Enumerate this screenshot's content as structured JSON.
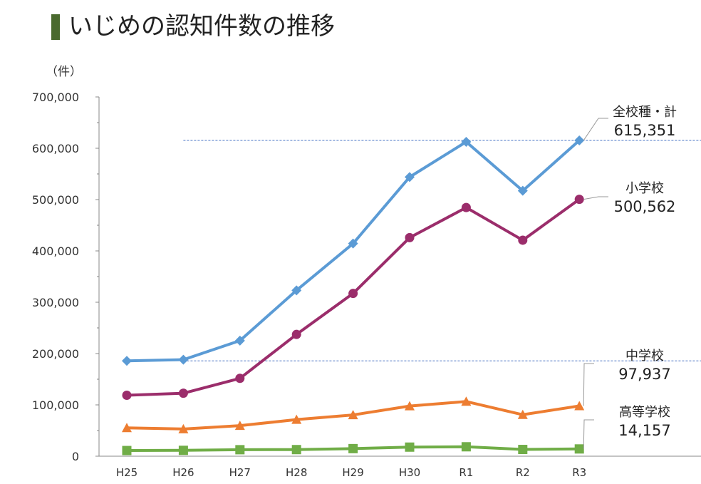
{
  "title": "いじめの認知件数の推移",
  "unit_label": "（件）",
  "colors": {
    "title_bar": "#4a6a2e",
    "axis": "#888888",
    "refline": "#4a74c4"
  },
  "chart_data": {
    "type": "line",
    "title": "いじめの認知件数の推移",
    "ylabel": "（件）",
    "xlabel": "",
    "categories": [
      "H25",
      "H26",
      "H27",
      "H28",
      "H29",
      "H30",
      "R1",
      "R2",
      "R3"
    ],
    "ylim": [
      0,
      700000
    ],
    "y_ticks": [
      0,
      100000,
      200000,
      300000,
      400000,
      500000,
      600000,
      700000
    ],
    "y_tick_labels": [
      "0",
      "100,000",
      "200,000",
      "300,000",
      "400,000",
      "500,000",
      "600,000",
      "700,000"
    ],
    "grid": false,
    "series": [
      {
        "name": "全校種・計",
        "color": "#5b9bd5",
        "marker": "diamond",
        "values": [
          185803,
          188072,
          225132,
          323143,
          414378,
          543933,
          612496,
          517163,
          615351
        ],
        "callout_value": "615,351"
      },
      {
        "name": "小学校",
        "color": "#9b2d6b",
        "marker": "circle",
        "values": [
          118748,
          122734,
          151692,
          237256,
          317121,
          425844,
          484545,
          420897,
          500562
        ],
        "callout_value": "500,562"
      },
      {
        "name": "中学校",
        "color": "#ed7d31",
        "marker": "triangle",
        "values": [
          55248,
          52971,
          59502,
          71309,
          80424,
          97704,
          106524,
          80877,
          97937
        ],
        "callout_value": "97,937"
      },
      {
        "name": "高等学校",
        "color": "#70ad47",
        "marker": "square",
        "values": [
          11039,
          11404,
          12664,
          12874,
          14789,
          17709,
          18352,
          13126,
          14157
        ],
        "callout_value": "14,157"
      }
    ],
    "reference_lines": [
      615351,
      185803
    ]
  }
}
